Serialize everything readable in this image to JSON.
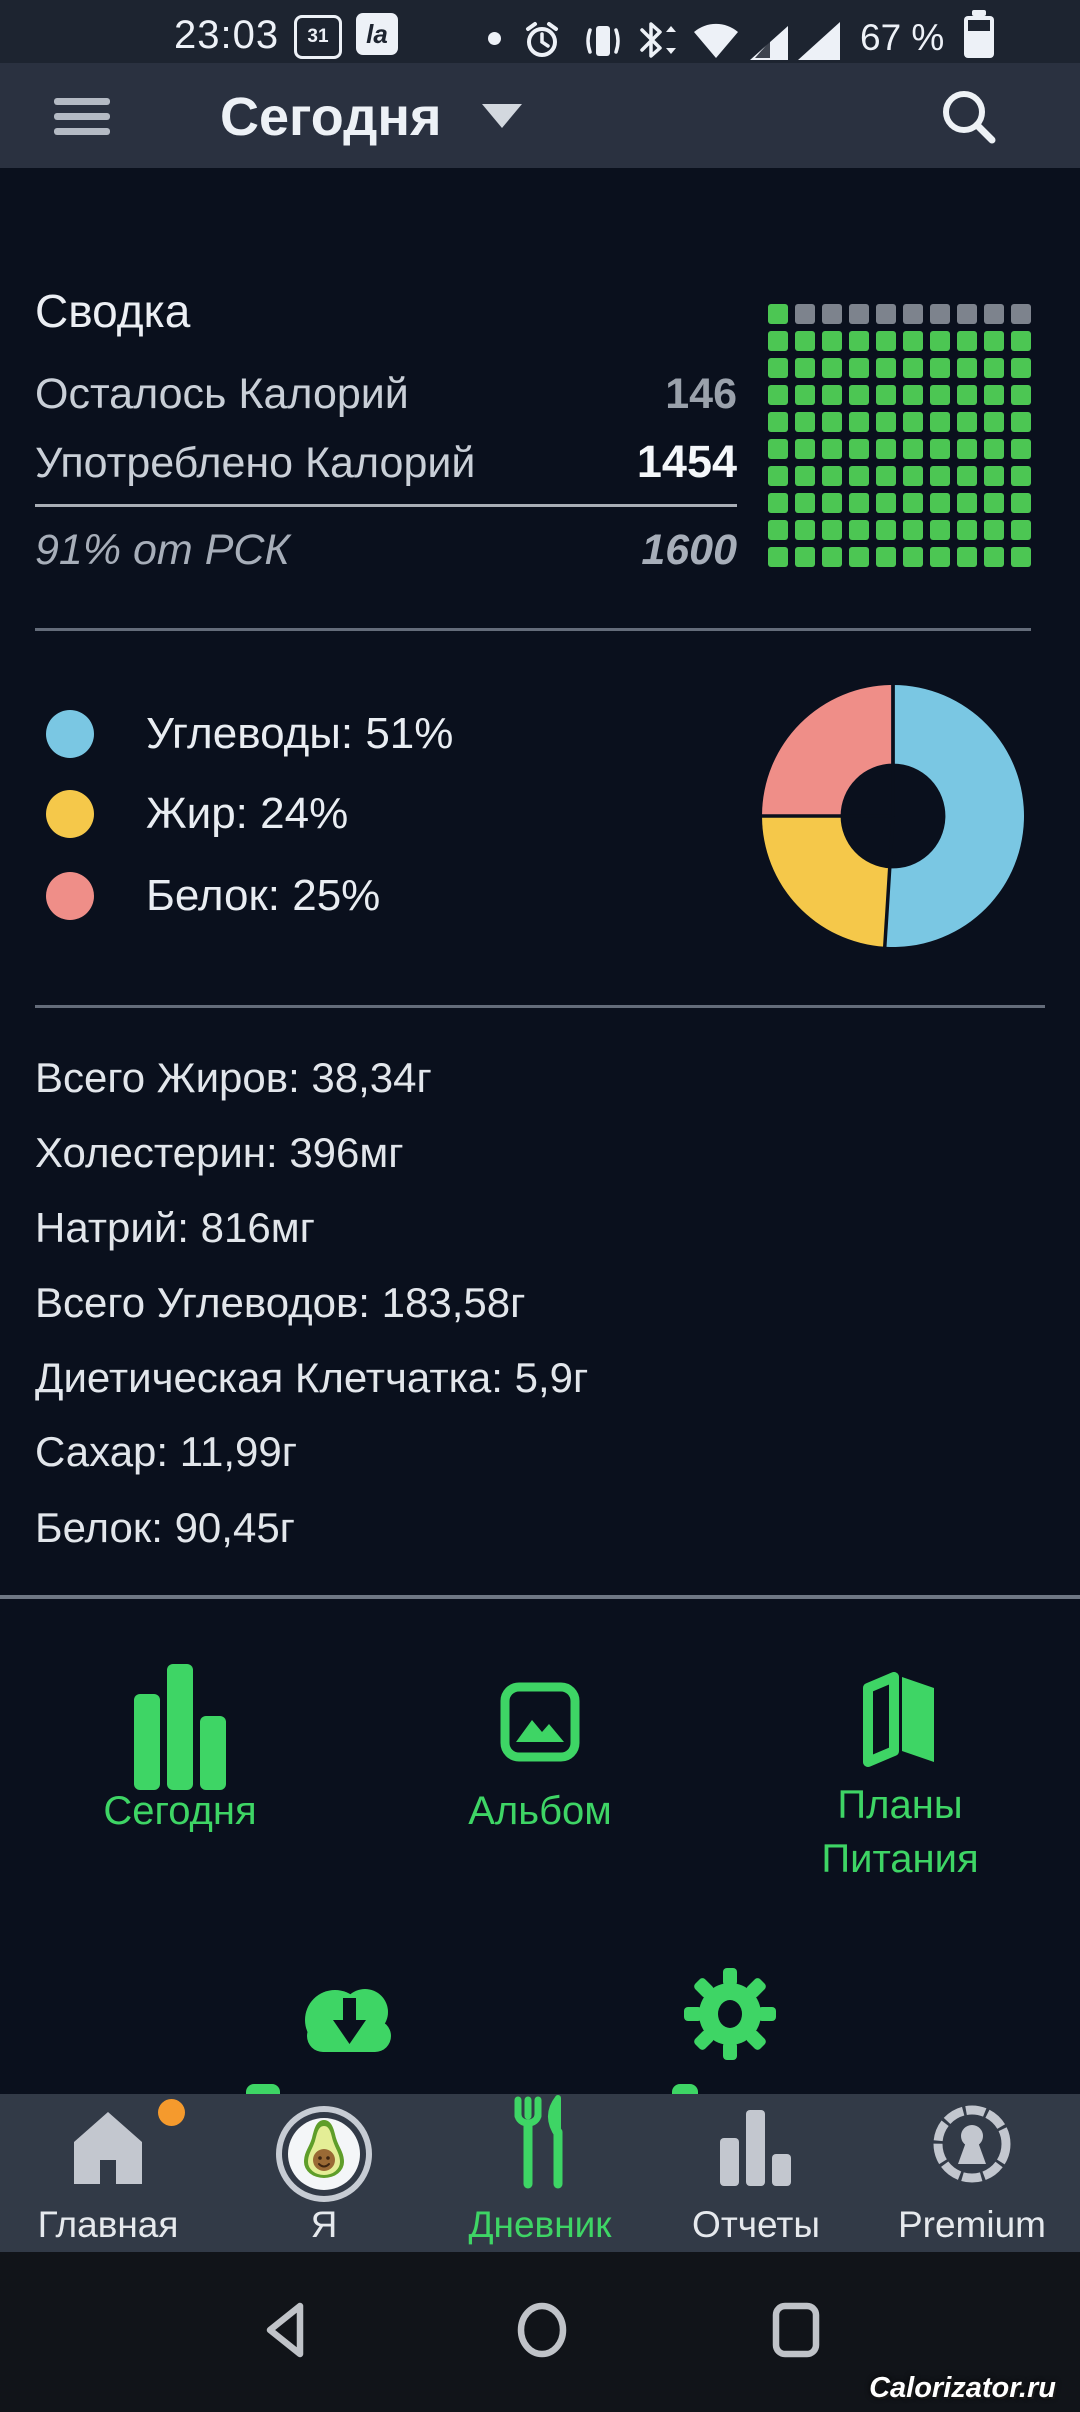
{
  "status_bar": {
    "time": "23:03",
    "calendar_day": "31",
    "carrier_badge": "la",
    "battery_text": "67 %"
  },
  "header": {
    "title": "Сегодня"
  },
  "summary": {
    "title": "Сводка",
    "rows": [
      {
        "label": "Осталось Калорий",
        "value": "146"
      },
      {
        "label": "Употреблено Калорий",
        "value": "1454"
      },
      {
        "label": "91% от РСК",
        "value": "1600"
      }
    ],
    "grid": {
      "cols": 10,
      "rows": 10,
      "filled": 91,
      "filled_color": "#4cc653",
      "empty_color": "#7d838d"
    }
  },
  "chart_data": {
    "type": "pie",
    "style": "donut",
    "labels": [
      "Углеводы",
      "Жир",
      "Белок"
    ],
    "values": [
      51,
      24,
      25
    ],
    "colors": [
      "#7ac7e3",
      "#f5c84a",
      "#ef8e88"
    ],
    "legend_display": [
      "Углеводы: 51%",
      "Жир: 24%",
      "Белок: 25%"
    ],
    "hole_ratio": 0.4,
    "start_angle": "top, clockwise",
    "legend_position": "left"
  },
  "nutrition": [
    "Всего Жиров: 38,34г",
    "Холестерин: 396мг",
    "Натрий: 816мг",
    "Всего Углеводов: 183,58г",
    "Диетическая Клетчатка: 5,9г",
    "Сахар: 11,99г",
    "Белок: 90,45г"
  ],
  "shortcuts": {
    "items": [
      {
        "label": "Сегодня"
      },
      {
        "label": "Альбом"
      },
      {
        "label": "Планы Питания"
      }
    ]
  },
  "bottom_nav": {
    "items": [
      {
        "label": "Главная"
      },
      {
        "label": "Я"
      },
      {
        "label": "Дневник"
      },
      {
        "label": "Отчеты"
      },
      {
        "label": "Premium"
      }
    ],
    "active": "Дневник"
  },
  "watermark": "Calorizator.ru",
  "colors": {
    "accent_green": "#3ed565",
    "grid_green": "#4cc653",
    "grid_gray": "#7d838d",
    "nav_bg": "#323a47",
    "badge_orange": "#f59a2d",
    "background": "#0a101d"
  }
}
